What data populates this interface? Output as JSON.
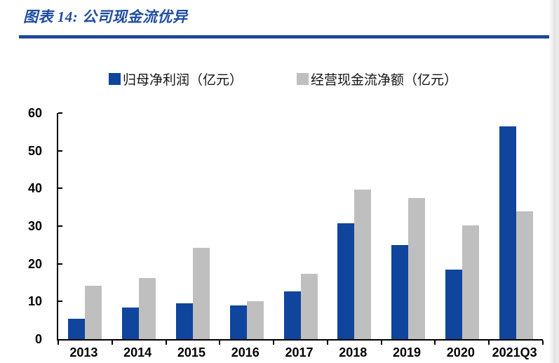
{
  "header": {
    "title": "图表 14: 公司现金流优异"
  },
  "colors": {
    "title_blue": "#1e4da3",
    "rule_blue": "#16418f",
    "bar_blue": "#0f459c",
    "bar_gray": "#bfbfbf",
    "axis_black": "#000000",
    "page_edge_shadow": "#e3e3e3"
  },
  "chart_data": {
    "type": "bar",
    "title": "公司现金流优异",
    "categories": [
      "2013",
      "2014",
      "2015",
      "2016",
      "2017",
      "2018",
      "2019",
      "2020",
      "2021Q3"
    ],
    "series": [
      {
        "key": "net-profit",
        "name": "归母净利润（亿元）",
        "color": "#0f459c",
        "values": [
          5.4,
          8.4,
          9.5,
          9.0,
          12.7,
          30.7,
          25.0,
          18.4,
          56.5
        ]
      },
      {
        "key": "operating-cash-flow",
        "name": "经营现金流净额（亿元）",
        "color": "#bfbfbf",
        "values": [
          14.1,
          16.2,
          24.2,
          10.1,
          17.3,
          39.6,
          37.5,
          30.1,
          34.0
        ]
      }
    ],
    "xlabel": "",
    "ylabel": "",
    "ylim": [
      0,
      60
    ],
    "yticks": [
      0,
      10,
      20,
      30,
      40,
      50,
      60
    ],
    "grid": false,
    "legend_position": "top"
  }
}
